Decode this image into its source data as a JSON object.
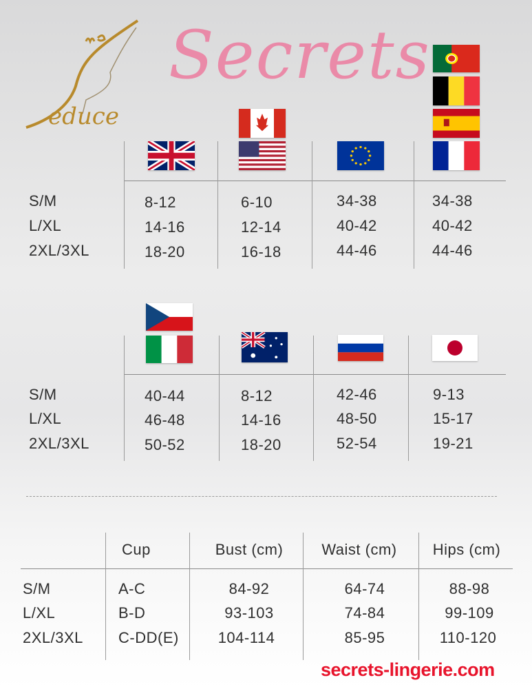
{
  "logo": {
    "text": "Me Seduce",
    "color": "#b88a2c"
  },
  "table1": {
    "flags": [
      "uk-flag",
      "canada-flag",
      "usa-flag",
      "eu-flag",
      "portugal-flag",
      "belgium-flag",
      "spain-flag",
      "france-flag"
    ],
    "sizes": [
      "S/M",
      "L/XL",
      "2XL/3XL"
    ],
    "columns": [
      {
        "values": [
          "8-12",
          "14-16",
          "18-20"
        ]
      },
      {
        "values": [
          "6-10",
          "12-14",
          "16-18"
        ]
      },
      {
        "values": [
          "34-38",
          "40-42",
          "44-46"
        ]
      },
      {
        "values": [
          "34-38",
          "40-42",
          "44-46"
        ]
      }
    ]
  },
  "table2": {
    "flags": [
      "czech-flag",
      "italy-flag",
      "australia-flag",
      "russia-flag",
      "japan-flag"
    ],
    "sizes": [
      "S/M",
      "L/XL",
      "2XL/3XL"
    ],
    "columns": [
      {
        "values": [
          "40-44",
          "46-48",
          "50-52"
        ]
      },
      {
        "values": [
          "8-12",
          "14-16",
          "18-20"
        ]
      },
      {
        "values": [
          "42-46",
          "48-50",
          "52-54"
        ]
      },
      {
        "values": [
          "9-13",
          "15-17",
          "19-21"
        ]
      }
    ]
  },
  "table3": {
    "headers": [
      "Cup",
      "Bust (cm)",
      "Waist (cm)",
      "Hips (cm)"
    ],
    "rows": [
      {
        "size": "S/M",
        "cup": "A-C",
        "bust": "84-92",
        "waist": "64-74",
        "hips": "88-98"
      },
      {
        "size": "L/XL",
        "cup": "B-D",
        "bust": "93-103",
        "waist": "74-84",
        "hips": "99-109"
      },
      {
        "size": "2XL/3XL",
        "cup": "C-DD(E)",
        "bust": "104-114",
        "waist": "85-95",
        "hips": "110-120"
      }
    ]
  },
  "watermark": {
    "script": "Secrets",
    "url": "secrets-lingerie.com",
    "pink": "#ee6e96",
    "red": "#e8142c"
  }
}
